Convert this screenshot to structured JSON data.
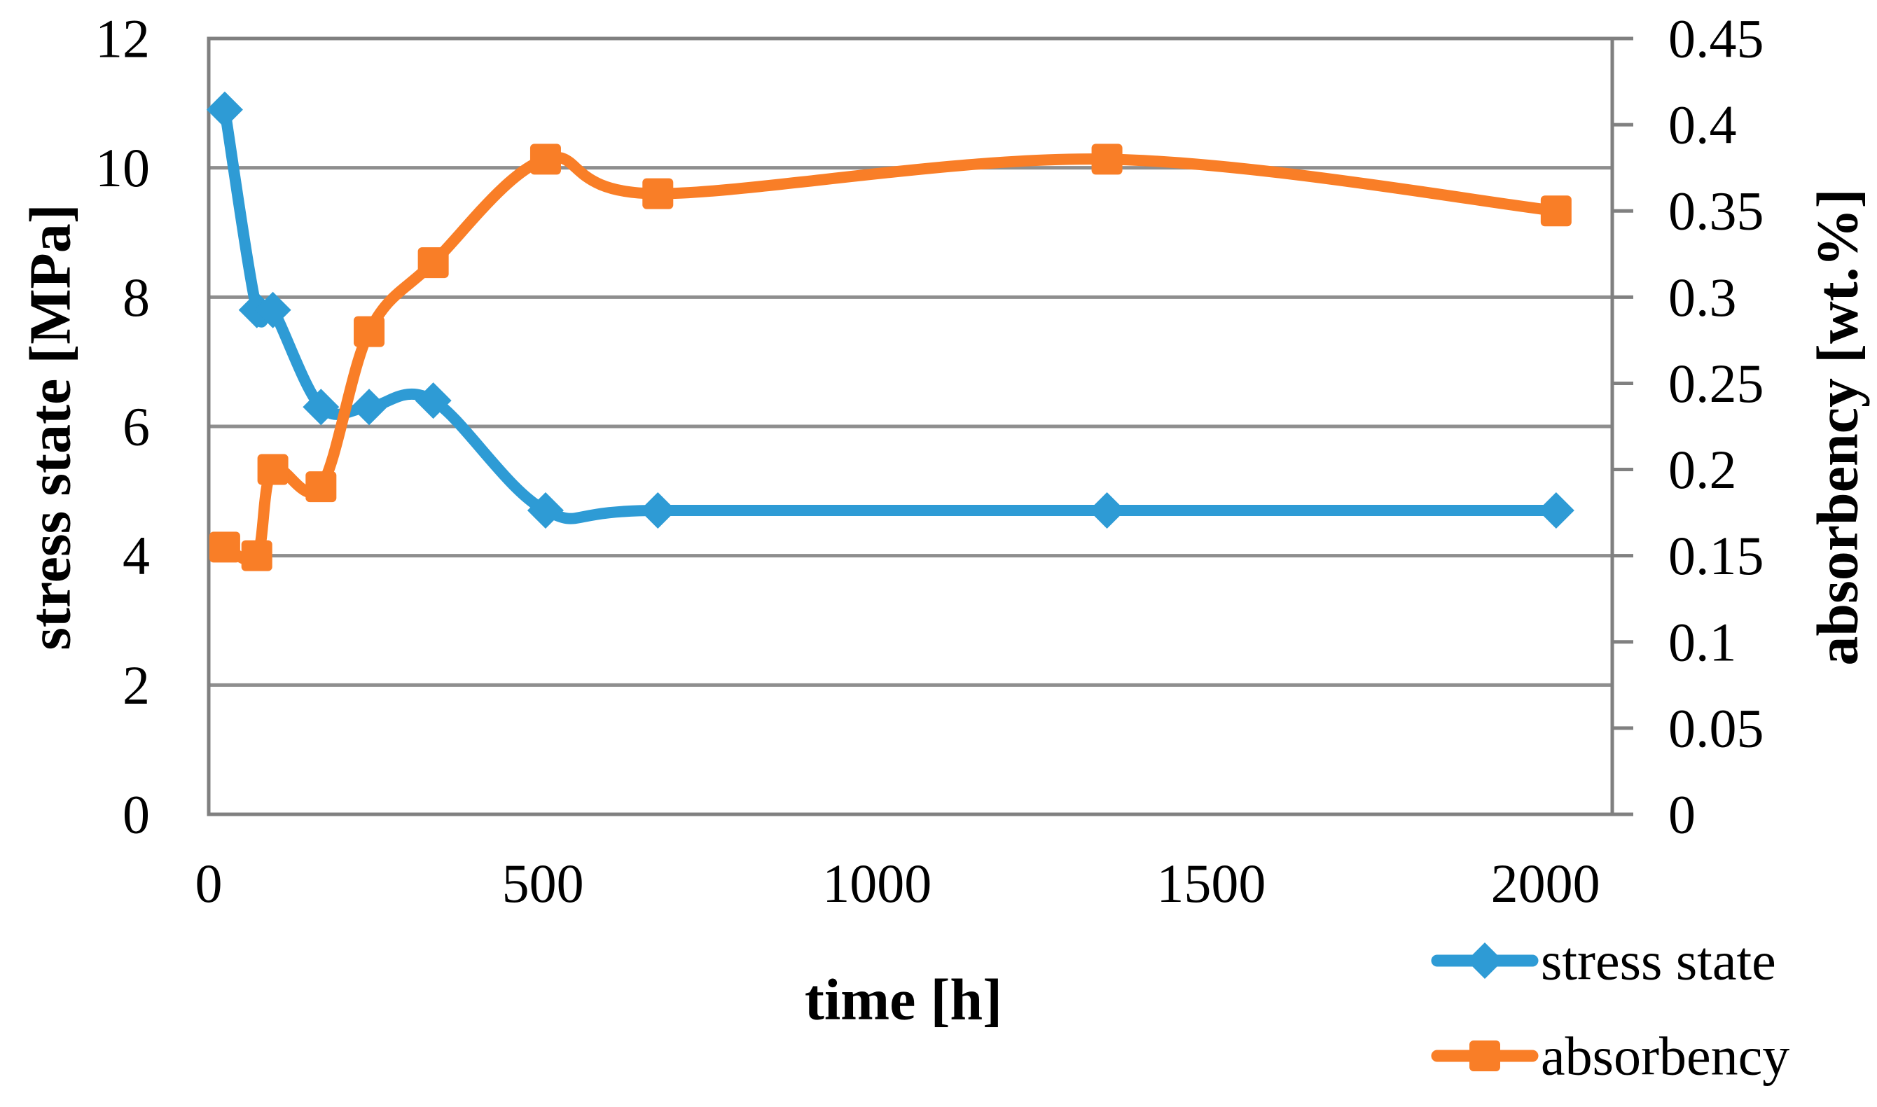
{
  "chart_data": {
    "type": "line",
    "x": [
      24,
      72,
      96,
      168,
      240,
      336,
      504,
      672,
      1344,
      2016
    ],
    "series": [
      {
        "name": "stress state",
        "axis": "left",
        "color": "#2E9BD5",
        "marker": "diamond",
        "values": [
          10.9,
          7.8,
          7.8,
          6.3,
          6.3,
          6.4,
          4.7,
          4.7,
          4.7,
          4.7
        ]
      },
      {
        "name": "absorbency",
        "axis": "right",
        "color": "#F97E27",
        "marker": "square",
        "values": [
          0.155,
          0.15,
          0.2,
          0.19,
          0.28,
          0.32,
          0.38,
          0.36,
          0.38,
          0.35
        ]
      }
    ],
    "title": "",
    "xlabel": "time [h]",
    "ylabel_left": "stress state [MPa]",
    "ylabel_right": "absorbency [wt.%]",
    "x_ticks": [
      0,
      500,
      1000,
      1500,
      2000
    ],
    "y_left_ticks": [
      12,
      10,
      8,
      6,
      4,
      2,
      0
    ],
    "y_right_ticks": [
      0.45,
      0.4,
      0.35,
      0.3,
      0.25,
      0.2,
      0.15,
      0.1,
      0.05,
      0
    ],
    "xlim": [
      0,
      2100
    ],
    "ylim_left": [
      0,
      12
    ],
    "ylim_right": [
      0,
      0.45
    ],
    "grid": "horizontal-major",
    "grid_color": "#8E8E8E",
    "axis_color": "#808080",
    "legend_position": "bottom-right",
    "smooth_lines": true
  },
  "legend": {
    "items": [
      {
        "label": "stress state"
      },
      {
        "label": "absorbency"
      }
    ]
  }
}
